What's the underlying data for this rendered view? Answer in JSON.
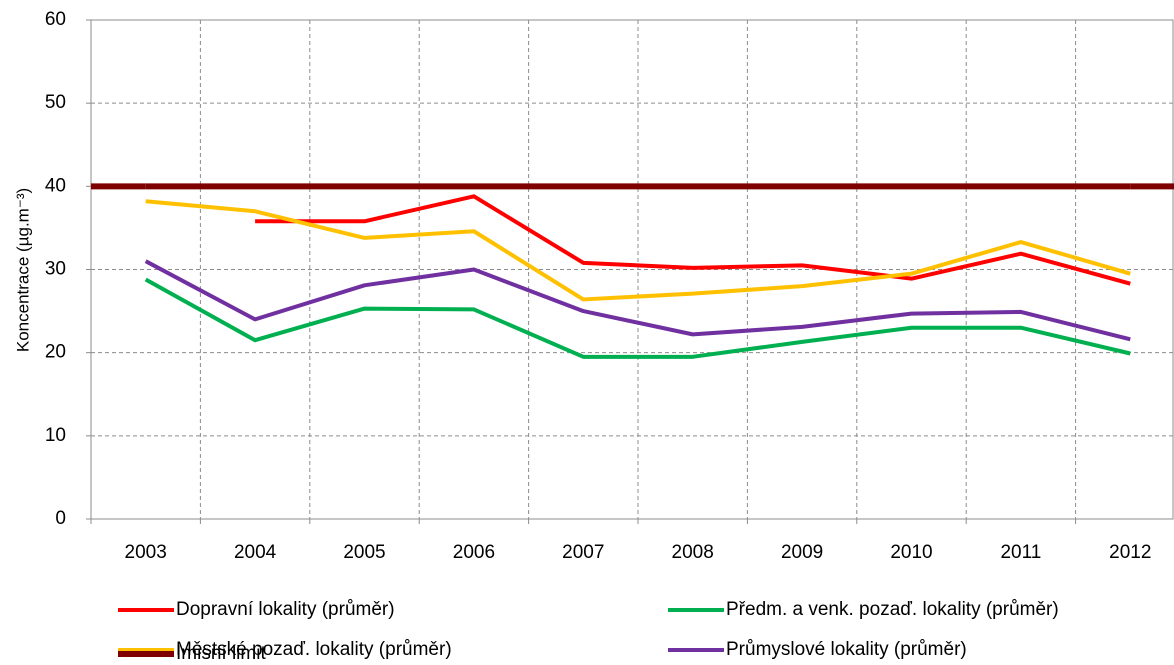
{
  "chart_data": {
    "type": "line",
    "y_label": "Koncentrace (µg.m⁻³)",
    "categories": [
      "2003",
      "2004",
      "2005",
      "2006",
      "2007",
      "2008",
      "2009",
      "2010",
      "2011",
      "2012"
    ],
    "series": [
      {
        "name": "Dopravní lokality (průměr)",
        "color": "#ff0000",
        "values": [
          null,
          35.8,
          35.8,
          38.8,
          30.8,
          30.2,
          30.5,
          28.9,
          31.9,
          28.3
        ]
      },
      {
        "name": "Předm. a venk. pozaď. lokality (průměr)",
        "color": "#00b050",
        "values": [
          28.8,
          21.5,
          25.3,
          25.2,
          19.5,
          19.5,
          21.3,
          23.0,
          23.0,
          19.9
        ]
      },
      {
        "name": "Městské pozaď. lokality (průměr)",
        "color": "#ffc000",
        "values": [
          38.2,
          37.0,
          33.8,
          34.6,
          26.4,
          27.1,
          28.0,
          29.5,
          33.3,
          29.5
        ]
      },
      {
        "name": "Průmyslové lokality (průměr)",
        "color": "#7030a0",
        "values": [
          31.0,
          24.0,
          28.1,
          30.0,
          25.0,
          22.2,
          23.1,
          24.7,
          24.9,
          21.6
        ]
      },
      {
        "name": "Imisní limit",
        "color": "#7f0000",
        "values": [
          40,
          40,
          40,
          40,
          40,
          40,
          40,
          40,
          40,
          40
        ]
      }
    ],
    "ylim": [
      0,
      60
    ],
    "yticks": [
      0,
      10,
      20,
      30,
      40,
      50,
      60
    ],
    "grid": true
  }
}
